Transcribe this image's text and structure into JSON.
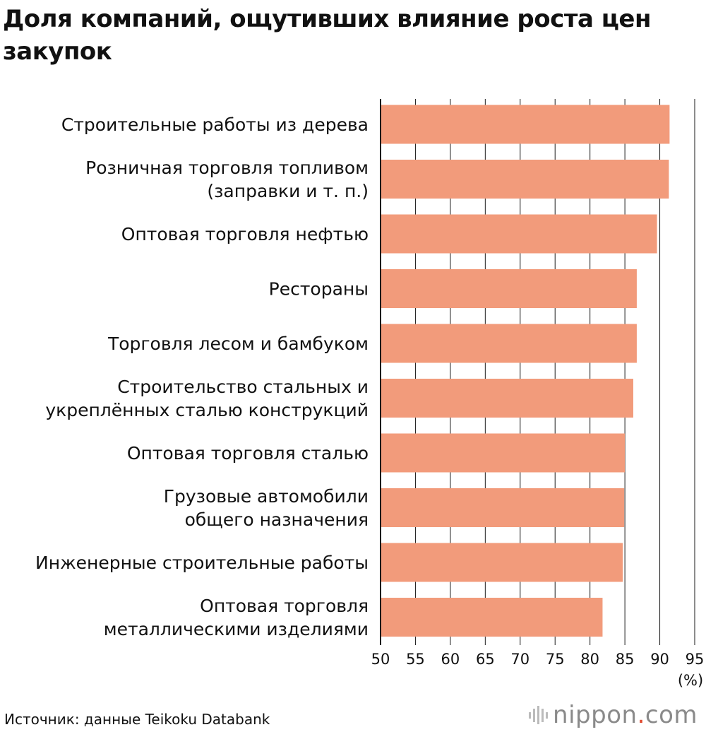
{
  "title": "Доля компаний, ощутивших влияние роста цен закупок",
  "chart_data": {
    "type": "bar",
    "orientation": "horizontal",
    "categories": [
      [
        "Строительные работы из дерева"
      ],
      [
        "Розничная торговля топливом",
        "(заправки и т. п.)"
      ],
      [
        "Оптовая торговля нефтью"
      ],
      [
        "Рестораны"
      ],
      [
        "Торговля лесом и бамбуком"
      ],
      [
        "Строительство стальных и",
        "укреплённых сталью конструкций"
      ],
      [
        "Оптовая торговля сталью"
      ],
      [
        "Грузовые автомобили",
        "общего назначения"
      ],
      [
        "Инженерные строительные работы"
      ],
      [
        "Оптовая торговля",
        "металлическими изделиями"
      ]
    ],
    "values": [
      91.4,
      91.3,
      89.6,
      86.7,
      86.7,
      86.2,
      85.0,
      84.9,
      84.7,
      81.8
    ],
    "xlim": [
      50,
      95
    ],
    "xticks": [
      "50",
      "55",
      "60",
      "65",
      "70",
      "75",
      "80",
      "85",
      "90",
      "95"
    ],
    "unit_label": "(%)",
    "bar_color": "#f29b7b",
    "grid": true,
    "grid_color": "#1a1a1a"
  },
  "source": "Источник: данные Teikoku Databank",
  "logo": {
    "name": "nippon",
    "dot": ".",
    "suffix": "com"
  }
}
